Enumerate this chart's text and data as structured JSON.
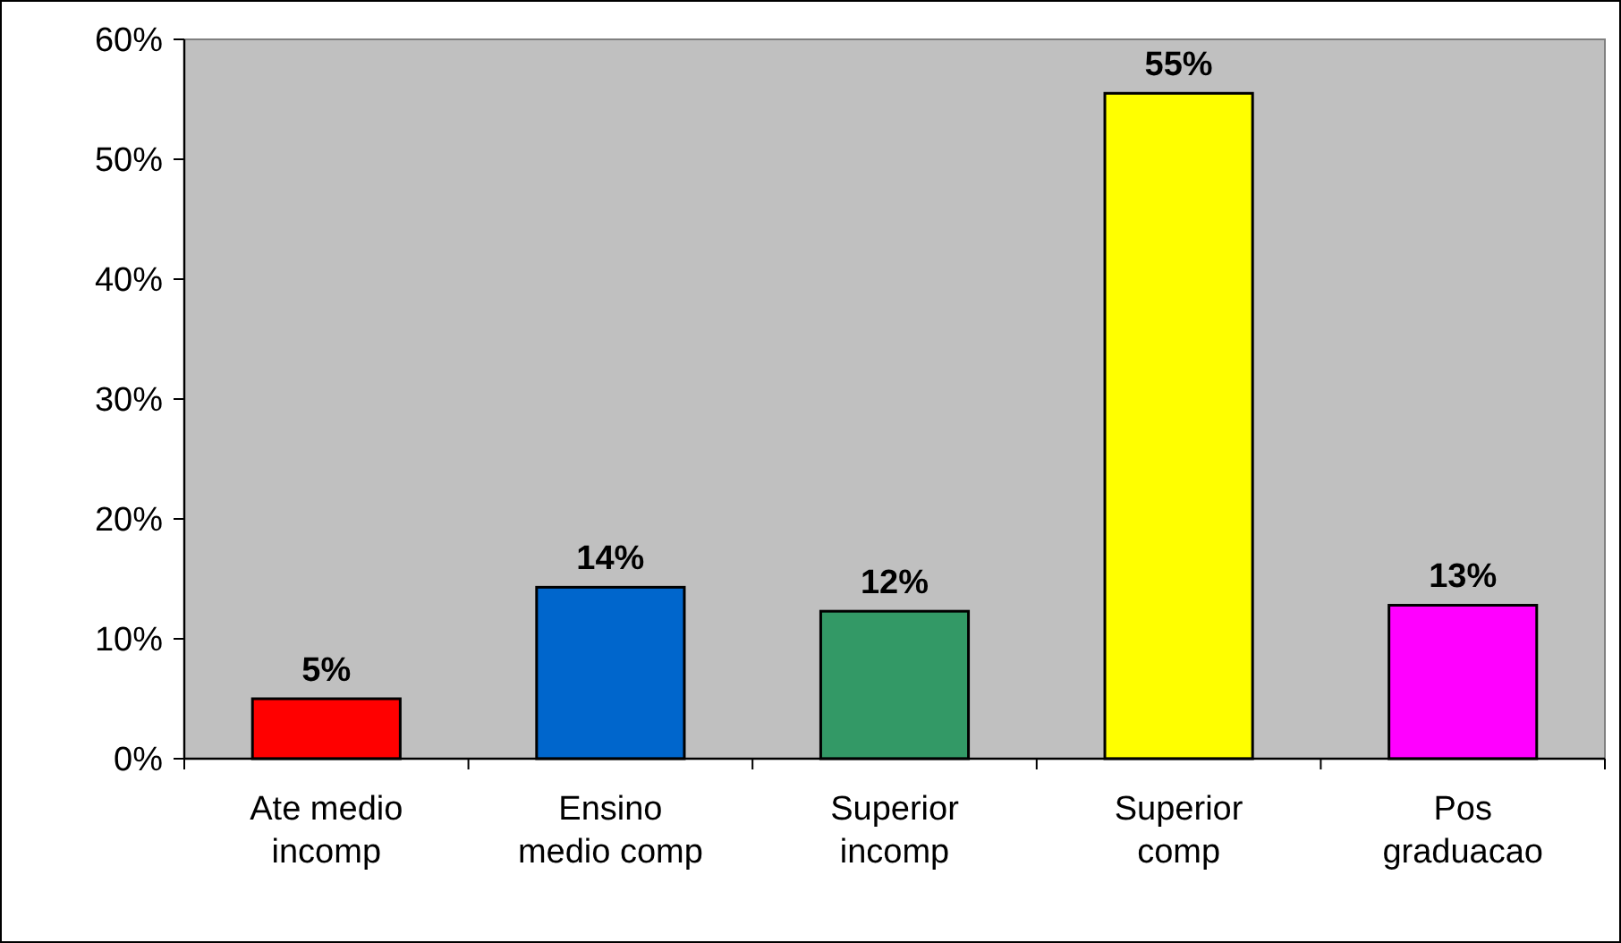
{
  "chart_data": {
    "type": "bar",
    "categories": [
      "Ate medio incomp",
      "Ensino medio comp",
      "Superior incomp",
      "Superior comp",
      "Pos graduacao"
    ],
    "values": [
      5,
      14.3,
      12.3,
      55.5,
      12.8
    ],
    "colors": [
      "#ff0000",
      "#0066cc",
      "#339966",
      "#ffff00",
      "#ff00ff"
    ],
    "value_labels": [
      "5%",
      "14%",
      "12%",
      "55%",
      "13%"
    ],
    "ylim": [
      0,
      60
    ],
    "yticks": [
      {
        "value": 0,
        "label": "0%"
      },
      {
        "value": 10,
        "label": "10%"
      },
      {
        "value": 20,
        "label": "20%"
      },
      {
        "value": 30,
        "label": "30%"
      },
      {
        "value": 40,
        "label": "40%"
      },
      {
        "value": 50,
        "label": "50%"
      },
      {
        "value": 60,
        "label": "60%"
      }
    ],
    "grid": false
  }
}
